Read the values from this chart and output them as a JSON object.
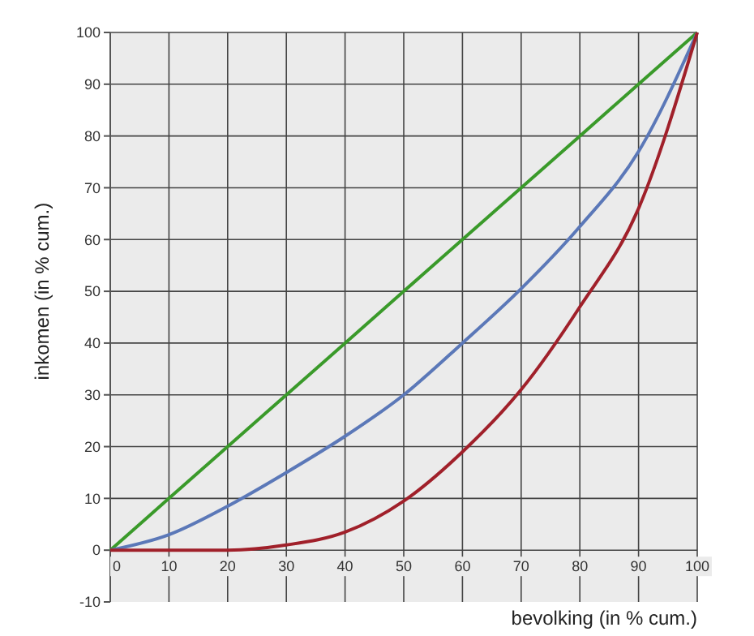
{
  "chart_data": {
    "type": "line",
    "xlabel": "bevolking (in % cum.)",
    "ylabel": "inkomen (in % cum.)",
    "x": [
      0,
      10,
      20,
      30,
      40,
      50,
      60,
      70,
      80,
      90,
      100
    ],
    "series": [
      {
        "color": "#3a9a2a",
        "values": [
          0,
          10,
          20,
          30,
          40,
          50,
          60,
          70,
          80,
          90,
          100
        ]
      },
      {
        "color": "#5b78b8",
        "values": [
          0,
          3,
          8.5,
          15,
          22,
          30,
          40,
          50.5,
          62.5,
          77,
          100
        ]
      },
      {
        "color": "#a0202a",
        "values": [
          0,
          0,
          0,
          1,
          3.5,
          9.5,
          19,
          31,
          47,
          66,
          100
        ]
      }
    ],
    "xlim": [
      0,
      100
    ],
    "xticks": [
      0,
      10,
      20,
      30,
      40,
      50,
      60,
      70,
      80,
      90,
      100
    ],
    "ylim": [
      -10,
      100
    ],
    "yticks": [
      -10,
      0,
      10,
      20,
      30,
      40,
      50,
      60,
      70,
      80,
      90,
      100
    ],
    "grid": true,
    "marker": "none",
    "line_style": "solid"
  }
}
